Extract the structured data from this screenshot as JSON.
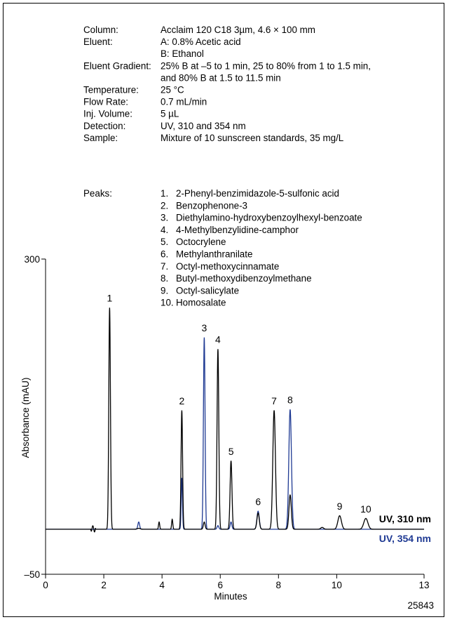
{
  "conditions": [
    {
      "label": "Column:",
      "lines": [
        "Acclaim 120 C18 3µm, 4.6 × 100 mm"
      ]
    },
    {
      "label": "Eluent:",
      "lines": [
        "A: 0.8% Acetic acid",
        "B: Ethanol"
      ]
    },
    {
      "label": "Eluent Gradient:",
      "lines": [
        "25% B at –5 to 1 min, 25 to 80% from 1 to 1.5 min,",
        "and 80% B at 1.5 to 11.5 min"
      ]
    },
    {
      "label": "Temperature:",
      "lines": [
        "25 °C"
      ]
    },
    {
      "label": "Flow Rate:",
      "lines": [
        "0.7 mL/min"
      ]
    },
    {
      "label": "Inj. Volume:",
      "lines": [
        "5 µL"
      ]
    },
    {
      "label": "Detection:",
      "lines": [
        "UV, 310 and 354 nm"
      ]
    },
    {
      "label": "Sample:",
      "lines": [
        "Mixture of 10 sunscreen standards, 35 mg/L"
      ]
    }
  ],
  "peaks_label": "Peaks:",
  "peaks": [
    {
      "number": "1.",
      "name": "2-Phenyl-benzimidazole-5-sulfonic acid"
    },
    {
      "number": "2.",
      "name": "Benzophenone-3"
    },
    {
      "number": "3.",
      "name": "Diethylamino-hydroxybenzoylhexyl-benzoate"
    },
    {
      "number": "4.",
      "name": "4-Methylbenzylidine-camphor"
    },
    {
      "number": "5.",
      "name": "Octocrylene"
    },
    {
      "number": "6.",
      "name": "Methylanthranilate"
    },
    {
      "number": "7.",
      "name": "Octyl-methoxycinnamate"
    },
    {
      "number": "8.",
      "name": "Butyl-methoxydibenzoylmethane"
    },
    {
      "number": "9.",
      "name": "Octyl-salicylate"
    },
    {
      "number": "10.",
      "name": "Homosalate"
    }
  ],
  "figure_id": "25843",
  "chart_data": {
    "type": "line",
    "xlabel": "Minutes",
    "ylabel": "Absorbance (mAU)",
    "xlim": [
      0,
      13
    ],
    "ylim": [
      -50,
      300
    ],
    "x_ticks": [
      "0",
      "2",
      "4",
      "6",
      "8",
      "10",
      "13"
    ],
    "x_tick_values": [
      0,
      2,
      4,
      6,
      8,
      10,
      13
    ],
    "y_ticks": [
      "300",
      "–50"
    ],
    "y_tick_values": [
      300,
      -50
    ],
    "grid": false,
    "baseline": 0,
    "series": [
      {
        "name": "UV, 310 nm",
        "color": "#000000",
        "peaks": [
          {
            "t": 1.6,
            "h": 2,
            "w": 0.02
          },
          {
            "t": 2.2,
            "h": 246,
            "w": 0.028
          },
          {
            "t": 3.2,
            "h": 1,
            "w": 0.05
          },
          {
            "t": 3.9,
            "h": 8,
            "w": 0.02
          },
          {
            "t": 4.35,
            "h": 11,
            "w": 0.02
          },
          {
            "t": 4.68,
            "h": 132,
            "w": 0.026
          },
          {
            "t": 5.45,
            "h": 8,
            "w": 0.03
          },
          {
            "t": 5.92,
            "h": 200,
            "w": 0.03
          },
          {
            "t": 6.37,
            "h": 76,
            "w": 0.032
          },
          {
            "t": 7.3,
            "h": 18,
            "w": 0.04
          },
          {
            "t": 7.85,
            "h": 132,
            "w": 0.045
          },
          {
            "t": 8.4,
            "h": 38,
            "w": 0.04
          },
          {
            "t": 9.5,
            "h": 2,
            "w": 0.05
          },
          {
            "t": 10.1,
            "h": 15,
            "w": 0.06
          },
          {
            "t": 11.0,
            "h": 12,
            "w": 0.07
          }
        ]
      },
      {
        "name": "UV, 354 nm",
        "color": "#1f3a93",
        "peaks": [
          {
            "t": 3.2,
            "h": 8,
            "w": 0.03
          },
          {
            "t": 4.68,
            "h": 57,
            "w": 0.022
          },
          {
            "t": 5.45,
            "h": 213,
            "w": 0.028
          },
          {
            "t": 5.92,
            "h": 4,
            "w": 0.03
          },
          {
            "t": 6.37,
            "h": 8,
            "w": 0.03
          },
          {
            "t": 7.3,
            "h": 20,
            "w": 0.04
          },
          {
            "t": 8.4,
            "h": 133,
            "w": 0.045
          }
        ]
      }
    ],
    "peak_labels": [
      {
        "label": "1",
        "t": 2.2,
        "y": 248
      },
      {
        "label": "2",
        "t": 4.68,
        "y": 134
      },
      {
        "label": "3",
        "t": 5.45,
        "y": 215
      },
      {
        "label": "4",
        "t": 5.92,
        "y": 202
      },
      {
        "label": "5",
        "t": 6.37,
        "y": 78
      },
      {
        "label": "6",
        "t": 7.3,
        "y": 22
      },
      {
        "label": "7",
        "t": 7.85,
        "y": 134
      },
      {
        "label": "8",
        "t": 8.4,
        "y": 135
      },
      {
        "label": "9",
        "t": 10.1,
        "y": 17
      },
      {
        "label": "10",
        "t": 11.0,
        "y": 14
      }
    ]
  }
}
